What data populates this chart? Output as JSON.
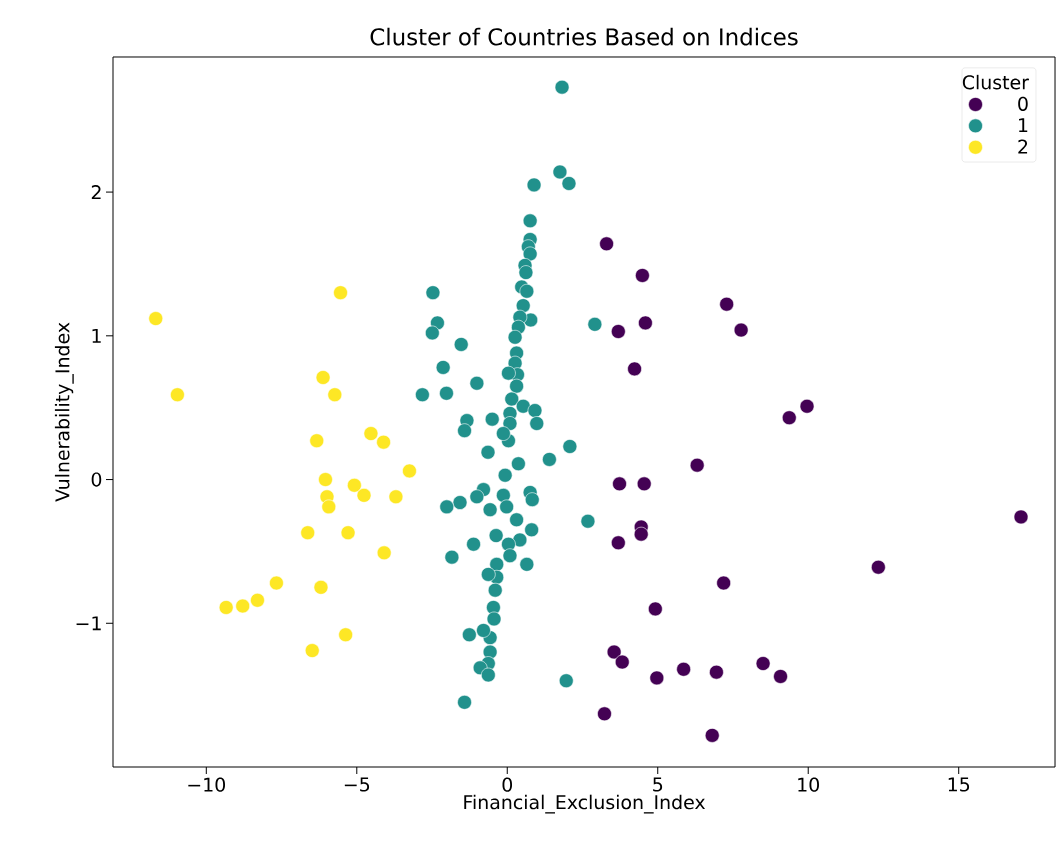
{
  "chart_data": {
    "type": "scatter",
    "title": "Cluster of Countries Based on Indices",
    "xlabel": "Financial_Exclusion_Index",
    "ylabel": "Vulnerability_Index",
    "legend_title": "Cluster",
    "legend": "top right",
    "marker": "circle",
    "grid": false,
    "xlim": [
      -13.1,
      18.2
    ],
    "ylim": [
      -2.0,
      2.94
    ],
    "xticks": [
      {
        "value": -10,
        "label": "−10"
      },
      {
        "value": -5,
        "label": "−5"
      },
      0,
      5,
      10,
      15
    ],
    "yticks": [
      {
        "value": -1,
        "label": "−1"
      },
      0,
      1,
      2
    ],
    "series": [
      {
        "name": "0",
        "color": "#440154",
        "x": [
          3.3,
          4.49,
          7.29,
          4.59,
          3.69,
          7.77,
          4.23,
          9.96,
          9.37,
          6.31,
          3.73,
          4.55,
          17.07,
          4.45,
          4.45,
          3.69,
          12.33,
          7.19,
          4.92,
          3.55,
          3.82,
          4.97,
          5.86,
          6.95,
          8.5,
          9.08,
          3.23,
          6.81
        ],
        "values": [
          1.64,
          1.42,
          1.22,
          1.09,
          1.03,
          1.04,
          0.77,
          0.51,
          0.43,
          0.1,
          -0.03,
          -0.03,
          -0.26,
          -0.33,
          -0.38,
          -0.44,
          -0.61,
          -0.72,
          -0.9,
          -1.2,
          -1.27,
          -1.38,
          -1.32,
          -1.34,
          -1.28,
          -1.37,
          -1.63,
          -1.78
        ]
      },
      {
        "name": "1",
        "color": "#21918c",
        "x": [
          2.91,
          2.08,
          2.68,
          1.96,
          1.82,
          1.75,
          2.05,
          0.89,
          0.76,
          0.76,
          0.7,
          0.76,
          0.59,
          0.62,
          0.48,
          0.65,
          0.53,
          0.78,
          0.42,
          0.37,
          0.26,
          0.31,
          0.26,
          0.34,
          0.04,
          0.31,
          0.15,
          0.53,
          0.09,
          0.92,
          0.98,
          0.09,
          1.4,
          0.04,
          -0.13,
          0.37,
          -0.07,
          -2.47,
          -2.32,
          -2.49,
          -1.53,
          -2.13,
          -1.01,
          -2.82,
          -2.02,
          -1.34,
          -1.42,
          -0.5,
          -0.64,
          -0.79,
          -1.01,
          -1.57,
          -2.01,
          -0.13,
          0.76,
          0.83,
          -0.02,
          -0.57,
          0.31,
          0.81,
          0.42,
          -0.37,
          -1.12,
          0.04,
          -1.84,
          0.09,
          0.65,
          -0.35,
          -0.35,
          -0.63,
          -0.4,
          -0.46,
          -0.44,
          -1.26,
          -0.57,
          -0.79,
          -0.57,
          -0.63,
          -0.9,
          -0.63,
          -1.42
        ],
        "values": [
          1.08,
          0.23,
          -0.29,
          -1.4,
          2.73,
          2.14,
          2.06,
          2.05,
          1.8,
          1.67,
          1.62,
          1.57,
          1.49,
          1.44,
          1.34,
          1.31,
          1.21,
          1.11,
          1.13,
          1.06,
          0.99,
          0.88,
          0.81,
          0.73,
          0.74,
          0.65,
          0.56,
          0.51,
          0.46,
          0.48,
          0.39,
          0.39,
          0.14,
          0.27,
          0.32,
          0.11,
          0.03,
          1.3,
          1.09,
          1.02,
          0.94,
          0.78,
          0.67,
          0.59,
          0.6,
          0.41,
          0.34,
          0.42,
          0.19,
          -0.07,
          -0.12,
          -0.16,
          -0.19,
          -0.11,
          -0.09,
          -0.14,
          -0.19,
          -0.21,
          -0.28,
          -0.35,
          -0.42,
          -0.39,
          -0.45,
          -0.45,
          -0.54,
          -0.53,
          -0.59,
          -0.59,
          -0.68,
          -0.66,
          -0.77,
          -0.89,
          -0.97,
          -1.08,
          -1.1,
          -1.05,
          -1.2,
          -1.28,
          -1.31,
          -1.36,
          -1.55
        ]
      },
      {
        "name": "2",
        "color": "#fde725",
        "x": [
          -11.68,
          -10.96,
          -5.54,
          -6.12,
          -5.73,
          -6.33,
          -4.53,
          -4.11,
          -3.25,
          -6.04,
          -5.08,
          -4.76,
          -3.7,
          -5.99,
          -5.93,
          -6.63,
          -5.29,
          -4.09,
          -7.67,
          -6.19,
          -8.3,
          -8.79,
          -9.34,
          -5.37,
          -6.48
        ],
        "values": [
          1.12,
          0.59,
          1.3,
          0.71,
          0.59,
          0.27,
          0.32,
          0.26,
          0.06,
          0.0,
          -0.04,
          -0.11,
          -0.12,
          -0.12,
          -0.19,
          -0.37,
          -0.37,
          -0.51,
          -0.72,
          -0.75,
          -0.84,
          -0.88,
          -0.89,
          -1.08,
          -1.19
        ]
      }
    ]
  }
}
